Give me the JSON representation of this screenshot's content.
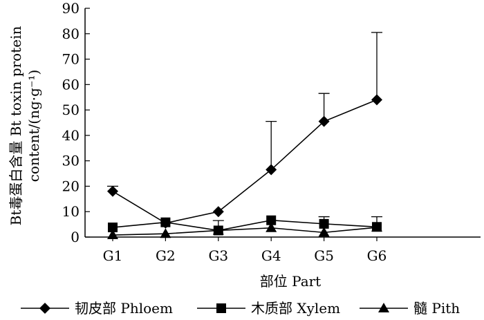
{
  "chart_data": {
    "type": "line",
    "categories": [
      "G1",
      "G2",
      "G3",
      "G4",
      "G5",
      "G6"
    ],
    "series": [
      {
        "name": "韧皮部 Phloem",
        "marker": "diamond",
        "values": [
          18,
          5.5,
          10,
          26.5,
          45.5,
          54
        ],
        "error_upper": [
          20,
          null,
          null,
          45.5,
          56.5,
          80.5
        ]
      },
      {
        "name": "木质部 Xylem",
        "marker": "square",
        "values": [
          3.8,
          5.8,
          2.6,
          6.6,
          5.2,
          4.0
        ],
        "error_upper": [
          null,
          null,
          null,
          null,
          8.0,
          8.0
        ]
      },
      {
        "name": "髓 Pith",
        "marker": "triangle",
        "values": [
          0.8,
          1.3,
          2.6,
          3.6,
          1.8,
          3.8
        ],
        "error_upper": [
          null,
          null,
          6.5,
          null,
          null,
          null
        ]
      }
    ],
    "xlabel": "部位 Part",
    "ylabel_lines": [
      "Bt毒蛋白含量 Bt toxin protein",
      "content/(ng·g⁻¹)"
    ],
    "ylim": [
      0,
      90
    ],
    "yticks": [
      0,
      10,
      20,
      30,
      40,
      50,
      60,
      70,
      80,
      90
    ],
    "grid": false,
    "legend_position": "bottom",
    "colors": {
      "line": "#000000",
      "background": "#ffffff"
    }
  }
}
